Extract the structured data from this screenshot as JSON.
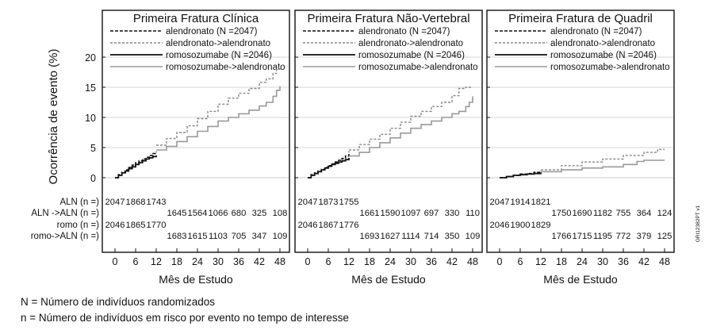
{
  "chart_data": {
    "type": "line",
    "ylabel": "Ocorrência de evento (%)",
    "xlabel": "Mês de Estudo",
    "xlim": [
      0,
      48
    ],
    "ylim": [
      0,
      20
    ],
    "xticks": [
      0,
      6,
      12,
      18,
      24,
      30,
      36,
      42,
      48
    ],
    "yticks": [
      0,
      5,
      10,
      15,
      20
    ],
    "grid": "horizontal",
    "side_code": "GRI12382PT v1",
    "legend_labels": {
      "aln": "alendronato (N =2047)",
      "alnaln": "alendronato->alendronato",
      "romo": "romosozumabe (N =2046)",
      "romoaln": "romosozumabe->alendronato"
    },
    "series_styles": {
      "aln": {
        "color": "#111111",
        "dash": "4,2",
        "width": 1.6
      },
      "alnaln": {
        "color": "#888888",
        "dash": "3,2",
        "width": 1.4
      },
      "romo": {
        "color": "#111111",
        "dash": "",
        "width": 1.8
      },
      "romoaln": {
        "color": "#999999",
        "dash": "",
        "width": 1.6
      }
    },
    "risk_row_labels": [
      "ALN (n =)",
      "ALN ->ALN (n =)",
      "romo (n =)",
      "romo->ALN (n =)"
    ],
    "risk_months": [
      0,
      6,
      12,
      18,
      24,
      30,
      36,
      42,
      48
    ],
    "panels": [
      {
        "title": "Primeira Fratura Clínica",
        "series": {
          "aln": {
            "x": [
              0,
              1,
              2,
              3,
              4,
              5,
              6,
              7,
              8,
              9,
              10,
              11,
              12
            ],
            "y": [
              0,
              0.5,
              0.9,
              1.3,
              1.7,
              2.1,
              2.5,
              2.8,
              3.1,
              3.4,
              3.7,
              4.0,
              4.3
            ]
          },
          "alnaln": {
            "x": [
              12,
              15,
              18,
              21,
              24,
              27,
              30,
              33,
              36,
              39,
              42,
              44,
              46,
              47,
              48
            ],
            "y": [
              5.4,
              6.5,
              7.5,
              8.6,
              9.8,
              11.0,
              12.2,
              13.2,
              14.0,
              14.8,
              15.8,
              16.4,
              17.3,
              18.0,
              18.2
            ]
          },
          "romo": {
            "x": [
              0,
              1,
              2,
              3,
              4,
              5,
              6,
              7,
              8,
              9,
              10,
              11,
              12
            ],
            "y": [
              0,
              0.4,
              0.8,
              1.1,
              1.5,
              1.8,
              2.2,
              2.5,
              2.8,
              3.1,
              3.3,
              3.5,
              3.7
            ]
          },
          "romoaln": {
            "x": [
              12,
              15,
              18,
              21,
              24,
              27,
              30,
              33,
              36,
              39,
              42,
              44,
              46,
              47,
              48
            ],
            "y": [
              4.6,
              5.2,
              6.0,
              6.8,
              7.7,
              8.5,
              9.4,
              10.0,
              10.6,
              11.2,
              11.9,
              12.5,
              13.5,
              14.5,
              15.2
            ]
          }
        },
        "risk": [
          [
            "2047",
            "1868",
            "1743",
            "",
            "",
            "",
            "",
            "",
            ""
          ],
          [
            "",
            "",
            "",
            "1645",
            "1564",
            "1066",
            "680",
            "325",
            "108"
          ],
          [
            "2046",
            "1865",
            "1770",
            "",
            "",
            "",
            "",
            "",
            ""
          ],
          [
            "",
            "",
            "",
            "1683",
            "1615",
            "1103",
            "705",
            "347",
            "109"
          ]
        ]
      },
      {
        "title": "Primeira Fratura Não-Vertebral",
        "series": {
          "aln": {
            "x": [
              0,
              1,
              2,
              3,
              4,
              5,
              6,
              7,
              8,
              9,
              10,
              11,
              12
            ],
            "y": [
              0,
              0.5,
              0.8,
              1.1,
              1.4,
              1.7,
              2.0,
              2.3,
              2.6,
              2.9,
              3.2,
              3.6,
              4.3
            ]
          },
          "alnaln": {
            "x": [
              12,
              15,
              18,
              21,
              24,
              27,
              30,
              33,
              36,
              39,
              42,
              44,
              46,
              48
            ],
            "y": [
              4.6,
              5.5,
              6.4,
              7.2,
              8.2,
              9.2,
              10.2,
              11.0,
              11.8,
              12.5,
              13.6,
              14.8,
              15.0,
              15.0
            ]
          },
          "romo": {
            "x": [
              0,
              1,
              2,
              3,
              4,
              5,
              6,
              7,
              8,
              9,
              10,
              11,
              12
            ],
            "y": [
              0,
              0.4,
              0.7,
              1.0,
              1.3,
              1.6,
              1.9,
              2.2,
              2.4,
              2.6,
              2.8,
              3.0,
              3.3
            ]
          },
          "romoaln": {
            "x": [
              12,
              15,
              18,
              21,
              24,
              27,
              30,
              33,
              36,
              39,
              42,
              44,
              46,
              47,
              48
            ],
            "y": [
              3.6,
              4.2,
              5.0,
              5.8,
              6.6,
              7.4,
              8.2,
              8.8,
              9.4,
              10.0,
              10.6,
              11.0,
              11.8,
              12.5,
              13.5
            ]
          }
        },
        "risk": [
          [
            "2047",
            "1873",
            "1755",
            "",
            "",
            "",
            "",
            "",
            ""
          ],
          [
            "",
            "",
            "",
            "1661",
            "1590",
            "1097",
            "697",
            "330",
            "110"
          ],
          [
            "2046",
            "1867",
            "1776",
            "",
            "",
            "",
            "",
            "",
            ""
          ],
          [
            "",
            "",
            "",
            "1693",
            "1627",
            "1114",
            "714",
            "350",
            "109"
          ]
        ]
      },
      {
        "title": "Primeira Fratura de Quadril",
        "series": {
          "aln": {
            "x": [
              0,
              2,
              4,
              6,
              8,
              10,
              12
            ],
            "y": [
              0,
              0.2,
              0.4,
              0.6,
              0.7,
              0.9,
              1.1
            ]
          },
          "alnaln": {
            "x": [
              12,
              18,
              24,
              30,
              36,
              42,
              46,
              48
            ],
            "y": [
              1.3,
              2.0,
              2.6,
              3.1,
              3.7,
              4.2,
              4.7,
              4.7
            ]
          },
          "romo": {
            "x": [
              0,
              2,
              4,
              6,
              8,
              10,
              12
            ],
            "y": [
              0,
              0.2,
              0.4,
              0.5,
              0.6,
              0.7,
              0.9
            ]
          },
          "romoaln": {
            "x": [
              12,
              18,
              24,
              30,
              36,
              40,
              42,
              48
            ],
            "y": [
              1.0,
              1.3,
              1.6,
              1.8,
              2.2,
              2.7,
              2.9,
              2.9
            ]
          }
        },
        "risk": [
          [
            "2047",
            "1914",
            "1821",
            "",
            "",
            "",
            "",
            "",
            ""
          ],
          [
            "",
            "",
            "",
            "1750",
            "1690",
            "1182",
            "755",
            "364",
            "124"
          ],
          [
            "2046",
            "1900",
            "1829",
            "",
            "",
            "",
            "",
            "",
            ""
          ],
          [
            "",
            "",
            "",
            "1766",
            "1715",
            "1195",
            "772",
            "379",
            "125"
          ]
        ]
      }
    ]
  },
  "footnotes": {
    "n_upper": "N = Número de indivíduos randomizados",
    "n_lower": "n = Número de indivíduos em risco por evento no tempo de interesse"
  }
}
